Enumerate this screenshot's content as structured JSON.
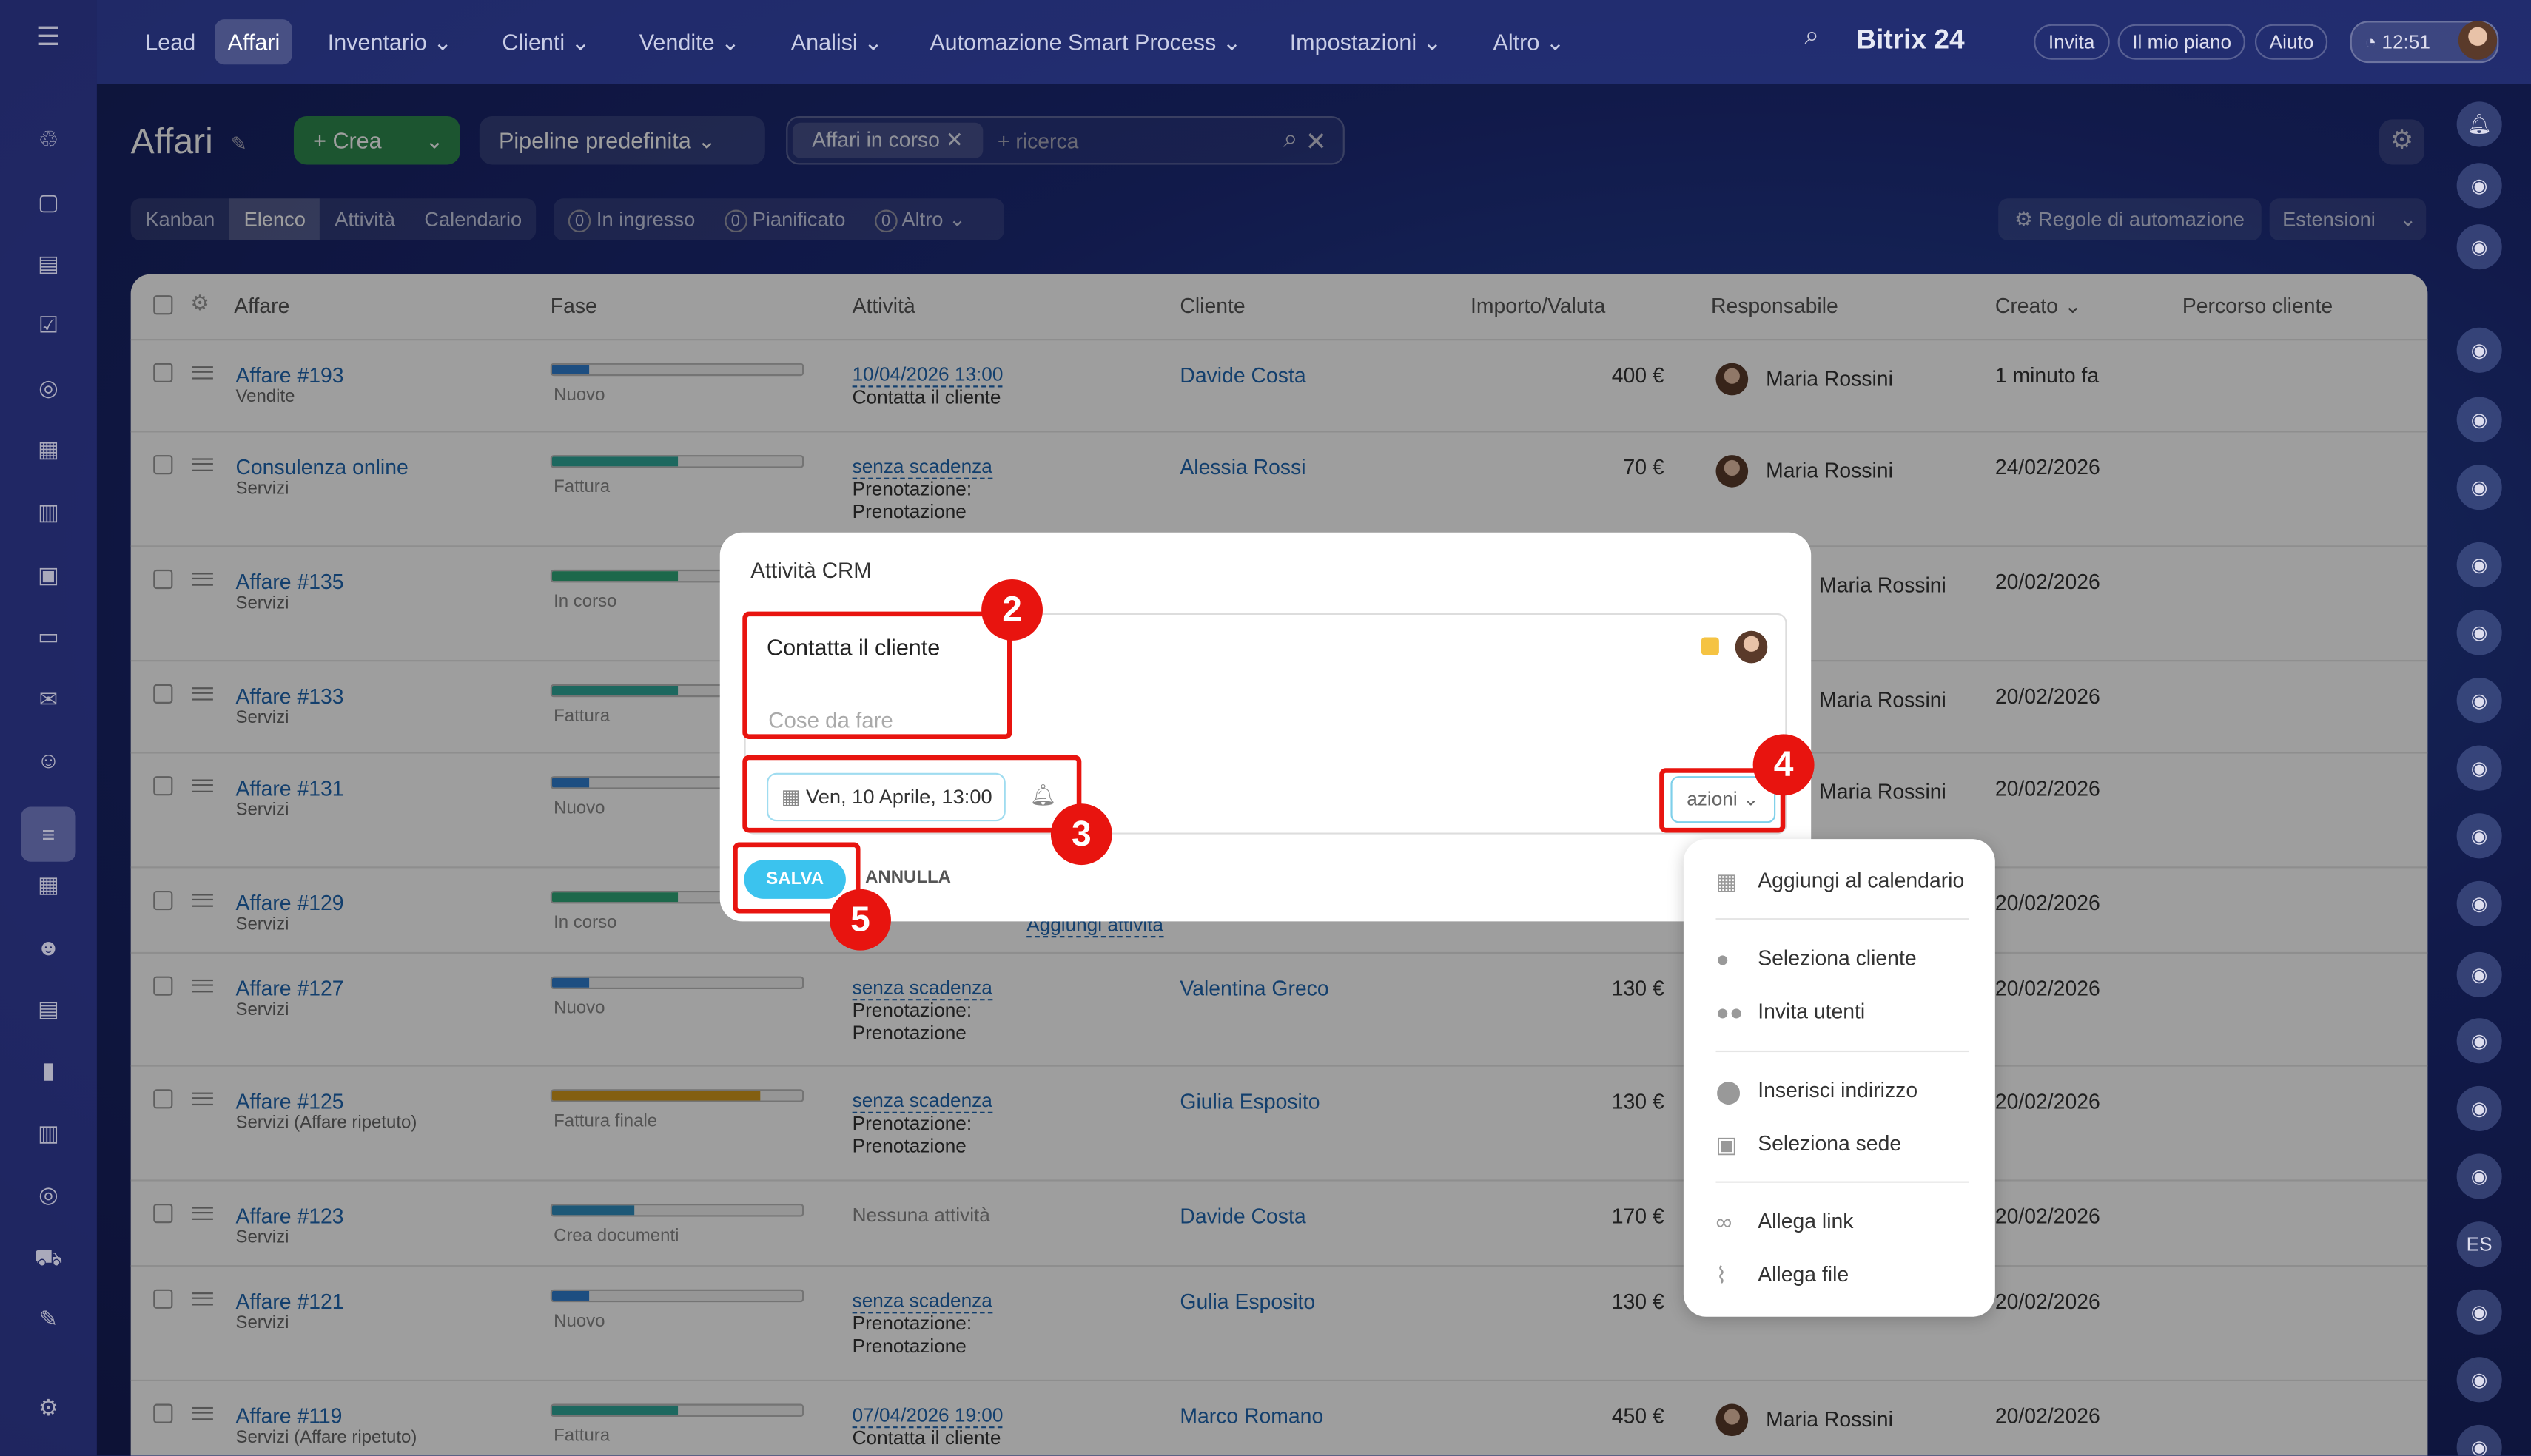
{
  "topnav": {
    "items": [
      "Lead",
      "Affari",
      "Inventario",
      "Clienti",
      "Vendite",
      "Analisi",
      "Automazione Smart Process",
      "Impostazioni",
      "Altro"
    ],
    "active": "Affari",
    "brand": "Bitrix 24",
    "invite": "Invita",
    "plan": "Il mio piano",
    "help": "Aiuto",
    "time": "12:51"
  },
  "header": {
    "title": "Affari",
    "create": "+ Crea",
    "pipeline": "Pipeline predefinita",
    "filter_chip": "Affari in corso",
    "search_placeholder": "+ ricerca"
  },
  "views": [
    "Kanban",
    "Elenco",
    "Attività",
    "Calendario"
  ],
  "counters": [
    {
      "count": "0",
      "label": "In ingresso"
    },
    {
      "count": "0",
      "label": "Pianificato"
    },
    {
      "count": "0",
      "label": "Altro"
    }
  ],
  "automation": "Regole di automazione",
  "extensions": "Estensioni",
  "columns": [
    "Affare",
    "Fase",
    "Attività",
    "Cliente",
    "Importo/Valuta",
    "Responsabile",
    "Creato",
    "Percorso cliente"
  ],
  "rows": [
    {
      "name": "Affare #193",
      "sub": "Vendite",
      "stage": "Nuovo",
      "progress": 0.15,
      "color": "#2f7fd0",
      "act": "10/04/2026 13:00",
      "act2": "Contatta il cliente",
      "client": "Davide Costa",
      "amount": "400 €",
      "resp": "Maria Rossini",
      "created": "1 minuto fa"
    },
    {
      "name": "Consulenza online",
      "sub": "Servizi",
      "stage": "Fattura",
      "progress": 0.5,
      "color": "#2fa89a",
      "act": "senza scadenza",
      "act2": "Prenotazione:",
      "act3": "Prenotazione",
      "client": "Alessia Rossi",
      "amount": "70 €",
      "resp": "Maria Rossini",
      "created": "24/02/2026"
    },
    {
      "name": "Affare #135",
      "sub": "Servizi",
      "stage": "In corso",
      "progress": 0.5,
      "color": "#2fa87a",
      "resp": "Maria Rossini",
      "created": "20/02/2026"
    },
    {
      "name": "Affare #133",
      "sub": "Servizi",
      "stage": "Fattura",
      "progress": 0.5,
      "color": "#2fa89a",
      "resp": "Maria Rossini",
      "created": "20/02/2026"
    },
    {
      "name": "Affare #131",
      "sub": "Servizi",
      "stage": "Nuovo",
      "progress": 0.15,
      "color": "#2f7fd0",
      "resp": "Maria Rossini",
      "created": "20/02/2026"
    },
    {
      "name": "Affare #129",
      "sub": "Servizi",
      "stage": "In corso",
      "progress": 0.5,
      "color": "#2fa87a",
      "act": "Aggiungi attività",
      "created": "20/02/2026"
    },
    {
      "name": "Affare #127",
      "sub": "Servizi",
      "stage": "Nuovo",
      "progress": 0.15,
      "color": "#2f7fd0",
      "act": "senza scadenza",
      "act2": "Prenotazione:",
      "act3": "Prenotazione",
      "client": "Valentina Greco",
      "amount": "130 €",
      "created": "20/02/2026"
    },
    {
      "name": "Affare #125",
      "sub": "Servizi (Affare ripetuto)",
      "stage": "Fattura finale",
      "progress": 0.83,
      "color": "#d39a1c",
      "act": "senza scadenza",
      "act2": "Prenotazione:",
      "act3": "Prenotazione",
      "client": "Giulia Esposito",
      "amount": "130 €",
      "created": "20/02/2026"
    },
    {
      "name": "Affare #123",
      "sub": "Servizi",
      "stage": "Crea documenti",
      "progress": 0.33,
      "color": "#2f8fc0",
      "act_plain": "Nessuna attività",
      "client": "Davide Costa",
      "amount": "170 €",
      "created": "20/02/2026"
    },
    {
      "name": "Affare #121",
      "sub": "Servizi",
      "stage": "Nuovo",
      "progress": 0.15,
      "color": "#2f7fd0",
      "act": "senza scadenza",
      "act2": "Prenotazione:",
      "act3": "Prenotazione",
      "client": "Gulia Esposito",
      "amount": "130 €",
      "created": "20/02/2026"
    },
    {
      "name": "Affare #119",
      "sub": "Servizi (Affare ripetuto)",
      "stage": "Fattura",
      "progress": 0.5,
      "color": "#2fa89a",
      "act": "07/04/2026 19:00",
      "act2": "Contatta il cliente",
      "client": "Marco Romano",
      "amount": "450 €",
      "resp": "Maria Rossini",
      "created": "20/02/2026"
    }
  ],
  "modal": {
    "title": "Attività CRM",
    "subject": "Contatta il cliente",
    "placeholder": "Cose da fare",
    "date": "Ven, 10 Aprile, 13:00",
    "actions": "azioni",
    "save": "SALVA",
    "cancel": "ANNULLA",
    "priority_color": "#f5c342"
  },
  "menu": [
    {
      "icon": "calendar-icon",
      "glyph": "▦",
      "label": "Aggiungi al calendario"
    },
    {
      "icon": "user-icon",
      "glyph": "●",
      "label": "Seleziona cliente"
    },
    {
      "icon": "users-icon",
      "glyph": "●●",
      "label": "Invita utenti"
    },
    {
      "icon": "pin-icon",
      "glyph": "⬤",
      "label": "Inserisci indirizzo"
    },
    {
      "icon": "location-icon",
      "glyph": "▣",
      "label": "Seleziona sede"
    },
    {
      "icon": "link-icon",
      "glyph": "∞",
      "label": "Allega link"
    },
    {
      "icon": "paperclip-icon",
      "glyph": "⌇",
      "label": "Allega file"
    }
  ],
  "annotations": [
    "2",
    "3",
    "4",
    "5"
  ],
  "right_avatar_initials": "ES"
}
